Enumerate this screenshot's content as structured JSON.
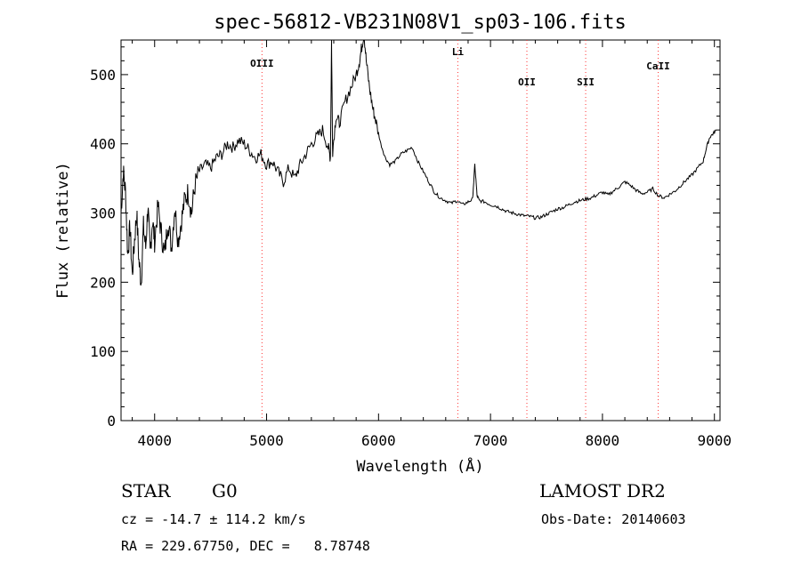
{
  "chart_data": {
    "type": "line",
    "title": "spec-56812-VB231N08V1_sp03-106.fits",
    "xlabel": "Wavelength (Å)",
    "ylabel": "Flux (relative)",
    "xlim": [
      3700,
      9050
    ],
    "ylim": [
      0,
      550
    ],
    "xticks": [
      4000,
      5000,
      6000,
      7000,
      8000,
      9000
    ],
    "yticks": [
      0,
      100,
      200,
      300,
      400,
      500
    ],
    "grid": false,
    "line_color": "#000000",
    "marker_color": "#ff3333",
    "lines": [
      {
        "label": "OIII",
        "x": 4959
      },
      {
        "label": "Li",
        "x": 6708
      },
      {
        "label": "OII",
        "x": 7325
      },
      {
        "label": "SII",
        "x": 7850
      },
      {
        "label": "CaII",
        "x": 8498
      }
    ],
    "series": [
      {
        "x": [
          3700,
          3720,
          3740,
          3760,
          3780,
          3800,
          3820,
          3840,
          3860,
          3880,
          3900,
          3920,
          3940,
          3960,
          3980,
          4000,
          4030,
          4060,
          4090,
          4120,
          4150,
          4180,
          4210,
          4240,
          4270,
          4300,
          4330,
          4360,
          4400,
          4450,
          4500,
          4550,
          4600,
          4650,
          4700,
          4750,
          4800,
          4850,
          4900,
          4950,
          5000,
          5050,
          5100,
          5150,
          5200,
          5250,
          5300,
          5350,
          5400,
          5450,
          5500,
          5550,
          5570,
          5580,
          5590,
          5620,
          5650,
          5700,
          5750,
          5800,
          5830,
          5850,
          5870,
          5890,
          5920,
          5950,
          5980,
          6020,
          6060,
          6100,
          6150,
          6200,
          6250,
          6300,
          6350,
          6400,
          6450,
          6500,
          6550,
          6600,
          6650,
          6700,
          6750,
          6800,
          6840,
          6860,
          6880,
          6900,
          6950,
          7000,
          7050,
          7100,
          7150,
          7200,
          7250,
          7300,
          7350,
          7400,
          7450,
          7500,
          7550,
          7600,
          7650,
          7700,
          7750,
          7800,
          7850,
          7900,
          7950,
          8000,
          8050,
          8100,
          8150,
          8200,
          8250,
          8300,
          8350,
          8400,
          8450,
          8500,
          8550,
          8600,
          8650,
          8700,
          8750,
          8800,
          8850,
          8900,
          8930,
          8960,
          8990,
          9020
        ],
        "y": [
          300,
          360,
          330,
          240,
          280,
          210,
          260,
          300,
          230,
          200,
          280,
          250,
          310,
          240,
          290,
          260,
          310,
          270,
          240,
          290,
          250,
          310,
          260,
          290,
          320,
          330,
          300,
          340,
          360,
          370,
          365,
          380,
          385,
          400,
          395,
          405,
          400,
          390,
          380,
          385,
          370,
          375,
          360,
          345,
          365,
          350,
          370,
          385,
          400,
          410,
          420,
          395,
          380,
          550,
          390,
          440,
          430,
          460,
          480,
          500,
          520,
          540,
          560,
          520,
          480,
          450,
          430,
          400,
          380,
          370,
          375,
          385,
          390,
          395,
          375,
          360,
          345,
          330,
          322,
          318,
          314,
          318,
          312,
          316,
          320,
          370,
          325,
          318,
          316,
          312,
          310,
          306,
          302,
          300,
          298,
          296,
          295,
          293,
          294,
          298,
          302,
          306,
          308,
          312,
          316,
          318,
          320,
          322,
          326,
          330,
          326,
          332,
          338,
          345,
          340,
          333,
          328,
          330,
          335,
          325,
          322,
          327,
          332,
          340,
          348,
          355,
          365,
          375,
          395,
          410,
          415,
          420
        ]
      }
    ]
  },
  "footer": {
    "object_class": "STAR",
    "subclass": "G0",
    "survey": "LAMOST DR2",
    "redshift": "cz = -14.7 ± 114.2 km/s",
    "obs_date": "Obs-Date: 20140603",
    "coords": "RA = 229.67750, DEC =   8.78748"
  }
}
